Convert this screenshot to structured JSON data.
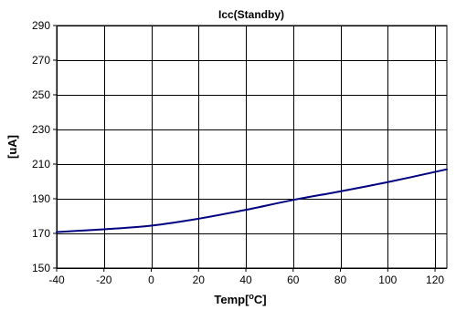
{
  "chart_data": {
    "type": "line",
    "title": "Icc(Standby)",
    "xlabel": "Temp[°C]",
    "xlabel_parts": {
      "before": "Temp[",
      "superscript": "o",
      "after": "C]"
    },
    "ylabel": "[uA]",
    "xlim": [
      -40,
      125
    ],
    "ylim": [
      150,
      290
    ],
    "x_ticks": [
      -40,
      -20,
      0,
      20,
      40,
      60,
      80,
      100,
      120
    ],
    "y_ticks": [
      150,
      170,
      190,
      210,
      230,
      250,
      270,
      290
    ],
    "grid": true,
    "legend": "none",
    "series": [
      {
        "color": "#000080",
        "x": [
          -40,
          -20,
          0,
          20,
          40,
          60,
          80,
          100,
          125
        ],
        "y": [
          170.8,
          172.4,
          174.5,
          178.5,
          183.6,
          189.3,
          194.3,
          199.6,
          207.0
        ]
      }
    ]
  }
}
